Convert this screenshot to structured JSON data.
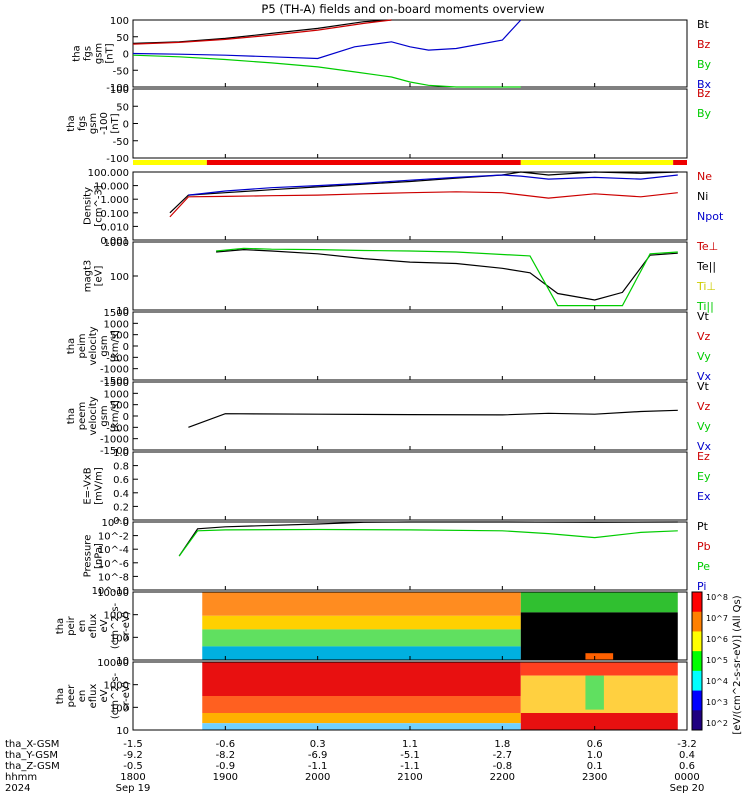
{
  "title": "P5 (TH-A) fields and on-board moments overview",
  "panels": [
    {
      "id": "fgs-gsm",
      "ylabel": [
        "tha",
        "fgs",
        "gsm",
        "[nT]"
      ],
      "yticks": [
        "100",
        "50",
        "0",
        "-50",
        "-100"
      ],
      "legend": [
        {
          "label": "Bt",
          "color": "#000000"
        },
        {
          "label": "Bz",
          "color": "#cc0000"
        },
        {
          "label": "By",
          "color": "#00cc00"
        },
        {
          "label": "Bx",
          "color": "#0000cc"
        }
      ]
    },
    {
      "id": "fgs-gsm-clip",
      "ylabel": [
        "tha",
        "fgs",
        "gsm",
        "-100",
        "[nT]"
      ],
      "yticks": [
        "100",
        "50",
        "0",
        "-50",
        "-100"
      ],
      "legend": [
        {
          "label": "Bz",
          "color": "#cc0000"
        },
        {
          "label": "By",
          "color": "#00cc00"
        }
      ]
    },
    {
      "id": "density",
      "ylabel": [
        "Density",
        "[cm^-3]"
      ],
      "yticks": [
        "100.000",
        "10.000",
        "1.000",
        "0.100",
        "0.010",
        "0.001"
      ],
      "legend": [
        {
          "label": "Ne",
          "color": "#cc0000"
        },
        {
          "label": "Ni",
          "color": "#000000"
        },
        {
          "label": "Npot",
          "color": "#0000cc"
        }
      ]
    },
    {
      "id": "temperature",
      "ylabel": [
        "magt3",
        "[eV]"
      ],
      "yticks": [
        "1000",
        "100",
        "10"
      ],
      "legend": [
        {
          "label": "Te⊥",
          "color": "#cc0000"
        },
        {
          "label": "Te||",
          "color": "#000000"
        },
        {
          "label": "Ti⊥",
          "color": "#cccc00"
        },
        {
          "label": "Ti||",
          "color": "#00cc00"
        }
      ]
    },
    {
      "id": "peim-velocity",
      "ylabel": [
        "tha",
        "peim",
        "velocity",
        "gsm",
        "[km/s]"
      ],
      "yticks": [
        "1500",
        "1000",
        "500",
        "0",
        "-500",
        "-1000",
        "-1500"
      ],
      "legend": [
        {
          "label": "Vt",
          "color": "#000000"
        },
        {
          "label": "Vz",
          "color": "#cc0000"
        },
        {
          "label": "Vy",
          "color": "#00cc00"
        },
        {
          "label": "Vx",
          "color": "#0000cc"
        }
      ]
    },
    {
      "id": "peem-velocity",
      "ylabel": [
        "tha",
        "peem",
        "velocity",
        "gsm",
        "[km/s]"
      ],
      "yticks": [
        "1500",
        "1000",
        "500",
        "0",
        "-500",
        "-1000",
        "-1500"
      ],
      "legend": [
        {
          "label": "Vt",
          "color": "#000000"
        },
        {
          "label": "Vz",
          "color": "#cc0000"
        },
        {
          "label": "Vy",
          "color": "#00cc00"
        },
        {
          "label": "Vx",
          "color": "#0000cc"
        }
      ]
    },
    {
      "id": "efield",
      "ylabel": [
        "E=-VxB",
        "[mV/m]"
      ],
      "yticks": [
        "1.0",
        "0.8",
        "0.6",
        "0.4",
        "0.2",
        "0.0"
      ],
      "legend": [
        {
          "label": "Ez",
          "color": "#cc0000"
        },
        {
          "label": "Ey",
          "color": "#00cc00"
        },
        {
          "label": "Ex",
          "color": "#0000cc"
        }
      ]
    },
    {
      "id": "pressure",
      "ylabel": [
        "Pressure",
        "[nPa]"
      ],
      "yticks": [
        "10^0",
        "10^-2",
        "10^-4",
        "10^-6",
        "10^-8",
        "10^-10"
      ],
      "legend": [
        {
          "label": "Pt",
          "color": "#000000"
        },
        {
          "label": "Pb",
          "color": "#cc0000"
        },
        {
          "label": "Pe",
          "color": "#00cc00"
        },
        {
          "label": "Pi",
          "color": "#0000cc"
        }
      ]
    },
    {
      "id": "peir-spec",
      "ylabel": [
        "tha",
        "peir",
        "en",
        "eflux",
        "eV",
        "(cm^2-s-",
        "sr-eV)"
      ],
      "yticks": [
        "10000",
        "1000",
        "100",
        "10"
      ],
      "legend": []
    },
    {
      "id": "peer-spec",
      "ylabel": [
        "tha",
        "peer",
        "en",
        "eflux",
        "eV",
        "(cm^2-s-",
        "sr-eV)"
      ],
      "yticks": [
        "10000",
        "1000",
        "100",
        "10"
      ],
      "legend": []
    }
  ],
  "colorbar": {
    "label": "[eV/(cm^2-s-sr-eV)] (All Qs)",
    "ticks": [
      "10^8",
      "10^7",
      "10^6",
      "10^5",
      "10^4",
      "10^3",
      "10^2"
    ]
  },
  "status_bar": {
    "colors": {
      "yellow": "#ffff00",
      "red": "#ee0000"
    }
  },
  "x_axis": {
    "row_labels": [
      "tha_X-GSM",
      "tha_Y-GSM",
      "tha_Z-GSM",
      "hhmm",
      "2024"
    ],
    "columns": [
      {
        "x": "-1.5",
        "y": "-9.2",
        "z": "-0.5",
        "t": "1800",
        "d": "Sep 19"
      },
      {
        "x": "-0.6",
        "y": "-8.2",
        "z": "-0.9",
        "t": "1900",
        "d": ""
      },
      {
        "x": "0.3",
        "y": "-6.9",
        "z": "-1.1",
        "t": "2000",
        "d": ""
      },
      {
        "x": "1.1",
        "y": "-5.1",
        "z": "-1.1",
        "t": "2100",
        "d": ""
      },
      {
        "x": "1.8",
        "y": "-2.7",
        "z": "-0.8",
        "t": "2200",
        "d": ""
      },
      {
        "x": "0.6",
        "y": "1.0",
        "z": "0.1",
        "t": "2300",
        "d": ""
      },
      {
        "x": "-3.2",
        "y": "0.4",
        "z": "0.6",
        "t": "0000",
        "d": "Sep 20"
      }
    ]
  },
  "chart_data": {
    "type": "line",
    "title": "P5 (TH-A) fields and on-board moments overview",
    "time_axis": {
      "start": "1800",
      "end": "0000",
      "ticks": [
        "1800",
        "1900",
        "2000",
        "2100",
        "2200",
        "2300",
        "0000"
      ]
    },
    "series": [
      {
        "name": "Bt",
        "panel": "fgs-gsm",
        "t": [
          18.0,
          18.5,
          19.0,
          19.5,
          20.0,
          20.5,
          20.8
        ],
        "values": [
          30,
          35,
          45,
          60,
          75,
          95,
          100
        ]
      },
      {
        "name": "Bz",
        "panel": "fgs-gsm",
        "t": [
          18.0,
          18.5,
          19.0,
          19.5,
          20.0,
          20.5,
          20.8
        ],
        "values": [
          28,
          33,
          42,
          55,
          70,
          90,
          100
        ]
      },
      {
        "name": "Bx",
        "panel": "fgs-gsm",
        "t": [
          18.0,
          18.5,
          19.0,
          19.5,
          20.0,
          20.4,
          20.8,
          21.0,
          21.2,
          21.5,
          22.0,
          22.2
        ],
        "values": [
          0,
          -2,
          -5,
          -10,
          -15,
          20,
          35,
          20,
          10,
          15,
          40,
          100
        ]
      },
      {
        "name": "By",
        "panel": "fgs-gsm",
        "t": [
          18.0,
          18.5,
          19.0,
          19.5,
          20.0,
          20.4,
          20.8,
          21.0,
          21.2,
          21.5,
          22.0,
          22.2
        ],
        "values": [
          -5,
          -10,
          -18,
          -28,
          -40,
          -55,
          -70,
          -85,
          -95,
          -100,
          -100,
          -100
        ]
      },
      {
        "name": "Ni",
        "panel": "density",
        "t": [
          18.4,
          18.6,
          19.0,
          19.5,
          20.0,
          20.5,
          21.0,
          21.5,
          22.0,
          22.2,
          22.5,
          23.0,
          23.5,
          23.9
        ],
        "values": [
          0.1,
          2,
          3,
          5,
          8,
          13,
          20,
          35,
          60,
          100,
          60,
          100,
          80,
          100
        ]
      },
      {
        "name": "Ne",
        "panel": "density",
        "t": [
          18.4,
          18.6,
          19.0,
          19.5,
          20.0,
          20.5,
          21.0,
          21.5,
          22.0,
          22.5,
          23.0,
          23.5,
          23.9
        ],
        "values": [
          0.05,
          1.5,
          1.6,
          1.8,
          2.0,
          2.5,
          3.0,
          3.5,
          3.0,
          1.2,
          2.5,
          1.5,
          3.0
        ]
      },
      {
        "name": "Npot",
        "panel": "density",
        "t": [
          18.6,
          19.0,
          19.5,
          20.0,
          20.5,
          21.0,
          21.5,
          22.0,
          22.2,
          22.5,
          23.0,
          23.5,
          23.9
        ],
        "values": [
          2,
          4,
          7,
          10,
          15,
          25,
          40,
          60,
          50,
          30,
          40,
          30,
          60
        ]
      },
      {
        "name": "Te||",
        "panel": "temperature",
        "t": [
          18.9,
          19.2,
          19.5,
          20.0,
          20.5,
          21.0,
          21.5,
          22.0,
          22.3,
          22.6,
          23.0,
          23.3,
          23.6,
          23.9
        ],
        "values": [
          2000,
          2500,
          2200,
          1700,
          1100,
          800,
          700,
          450,
          300,
          45,
          25,
          50,
          1500,
          1800
        ]
      },
      {
        "name": "Ti||",
        "panel": "temperature",
        "t": [
          18.9,
          19.2,
          19.5,
          20.0,
          20.5,
          21.0,
          21.5,
          22.0,
          22.3,
          22.6,
          23.0,
          23.3,
          23.6,
          23.9
        ],
        "values": [
          2200,
          2800,
          2600,
          2500,
          2300,
          2200,
          2000,
          1600,
          1400,
          15,
          15,
          15,
          1700,
          2000
        ]
      },
      {
        "name": "Vt",
        "panel": "peem-velocity",
        "t": [
          18.6,
          19.0,
          20.0,
          21.0,
          22.0,
          22.5,
          23.0,
          23.5,
          23.9
        ],
        "values": [
          -500,
          100,
          80,
          60,
          50,
          120,
          80,
          200,
          250
        ]
      },
      {
        "name": "Pt",
        "panel": "pressure",
        "t": [
          18.5,
          18.7,
          19.0,
          20.0,
          20.5,
          21.0,
          22.0,
          23.0,
          23.9
        ],
        "values": [
          1e-05,
          0.1,
          0.2,
          0.5,
          0.9,
          1.1,
          1.0,
          0.9,
          1.2
        ]
      },
      {
        "name": "Pe",
        "panel": "pressure",
        "t": [
          18.5,
          18.7,
          19.0,
          20.0,
          21.0,
          22.0,
          22.5,
          23.0,
          23.5,
          23.9
        ],
        "values": [
          1e-05,
          0.05,
          0.07,
          0.08,
          0.07,
          0.05,
          0.02,
          0.005,
          0.03,
          0.05
        ]
      }
    ]
  }
}
